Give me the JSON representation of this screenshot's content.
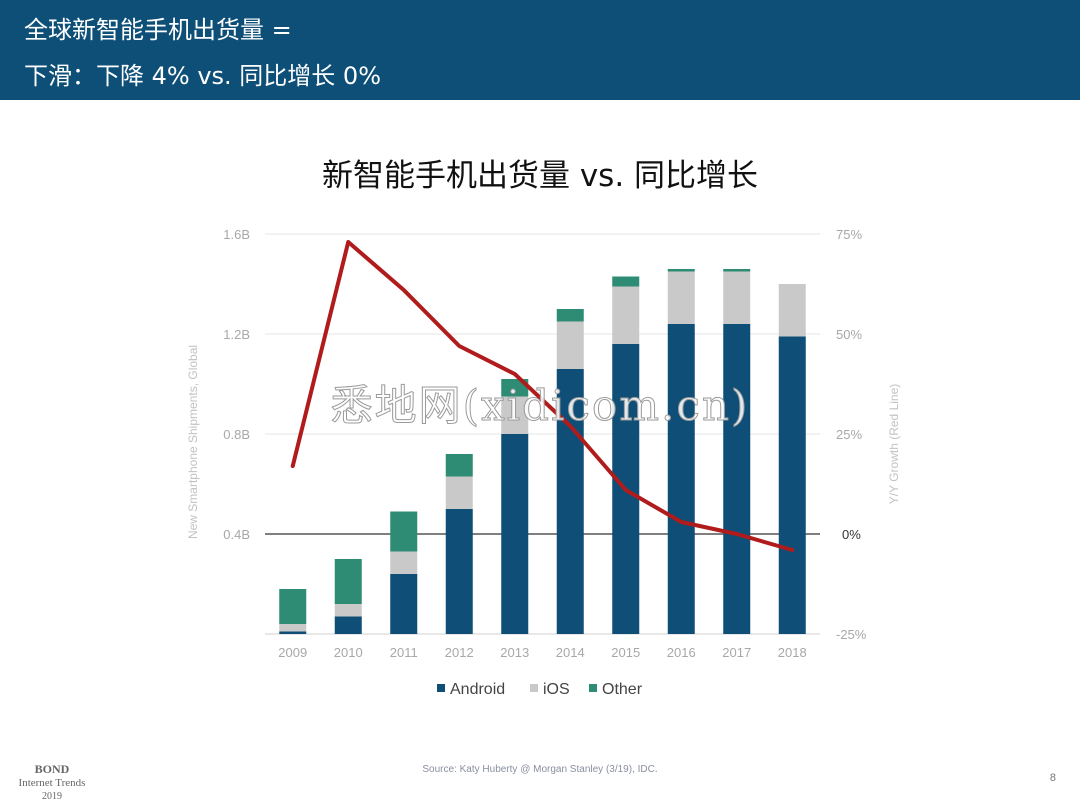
{
  "header": {
    "line1": "全球新智能手机出货量 =",
    "line2": "下滑：下降 4% vs. 同比增长 0%"
  },
  "watermark": "悉地网(xidicom.cn)",
  "footer": {
    "source": "Source: Katy Huberty @ Morgan Stanley (3/19), IDC.",
    "page_number": "8",
    "logo_line1": "BOND",
    "logo_line2": "Internet Trends",
    "logo_line3": "2019"
  },
  "colors": {
    "header_bg": "#0e4f78",
    "android": "#0f4e77",
    "ios": "#c9c9c9",
    "other": "#2e8c74",
    "growth_line": "#b01b1b"
  },
  "chart_data": {
    "type": "bar",
    "stacked": true,
    "title": "新智能手机出货量 vs. 同比增长",
    "ylabel": "New Smartphone Shipments, Global",
    "y2label": "Y/Y Growth (Red Line)",
    "ylim": [
      0,
      1.6
    ],
    "yticks": [
      0.4,
      0.8,
      1.2,
      1.6
    ],
    "ytick_labels": [
      "0.4B",
      "0.8B",
      "1.2B",
      "1.6B"
    ],
    "y2lim": [
      -25,
      75
    ],
    "y2ticks": [
      -25,
      0,
      25,
      50,
      75
    ],
    "y2tick_labels": [
      "-25%",
      "0%",
      "25%",
      "50%",
      "75%"
    ],
    "categories": [
      "2009",
      "2010",
      "2011",
      "2012",
      "2013",
      "2014",
      "2015",
      "2016",
      "2017",
      "2018"
    ],
    "series": [
      {
        "name": "Android",
        "color": "#0f4e77",
        "values": [
          0.01,
          0.07,
          0.24,
          0.5,
          0.8,
          1.06,
          1.16,
          1.24,
          1.24,
          1.19
        ]
      },
      {
        "name": "iOS",
        "color": "#c9c9c9",
        "values": [
          0.03,
          0.05,
          0.09,
          0.13,
          0.15,
          0.19,
          0.23,
          0.21,
          0.21,
          0.21
        ]
      },
      {
        "name": "Other",
        "color": "#2e8c74",
        "values": [
          0.14,
          0.18,
          0.16,
          0.09,
          0.07,
          0.05,
          0.04,
          0.01,
          0.01,
          0.0
        ]
      }
    ],
    "growth": {
      "name": "Y/Y Growth",
      "color": "#b01b1b",
      "values": [
        17,
        73,
        61,
        47,
        40,
        27,
        11,
        3,
        0,
        -4
      ]
    },
    "legend": [
      "Android",
      "iOS",
      "Other"
    ],
    "legend_position": "bottom"
  }
}
